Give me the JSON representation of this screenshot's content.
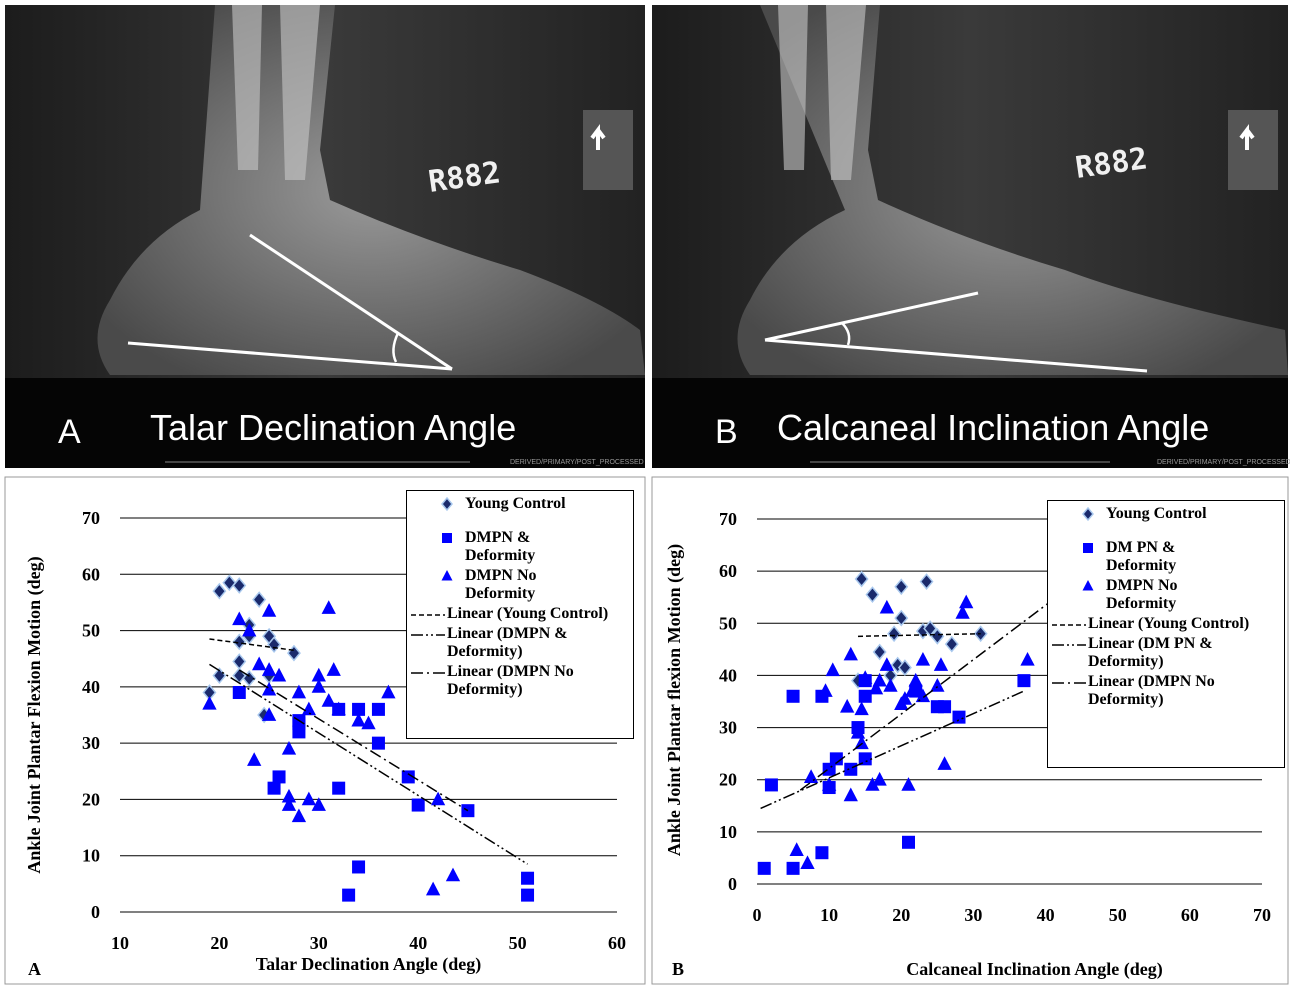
{
  "images": [
    {
      "letter": "A",
      "caption": "Talar Declination Angle",
      "tag": "R882",
      "footer": "DERIVED/PRIMARY/POST_PROCESSED"
    },
    {
      "letter": "B",
      "caption": "Calcaneal Inclination Angle",
      "tag": "R882",
      "footer": "DERIVED/PRIMARY/POST_PROCESSED"
    }
  ],
  "chart_data": [
    {
      "type": "scatter",
      "panel_label": "A",
      "x_label": "Talar Declination Angle (deg)",
      "y_label": "Ankle Joint Plantar Flexion Motion (deg)",
      "xlim": [
        10,
        60
      ],
      "ylim": [
        0,
        70
      ],
      "xticks": [
        10,
        20,
        30,
        40,
        50,
        60
      ],
      "yticks": [
        0,
        10,
        20,
        30,
        40,
        50,
        60,
        70
      ],
      "grid": "y",
      "series": [
        {
          "name": "Young Control",
          "marker": "diamond",
          "color": "#1a2a6c",
          "x": [
            19,
            20,
            20,
            21,
            22,
            22,
            22,
            22,
            23,
            23,
            24,
            24.5,
            25,
            25.5,
            25,
            27.5,
            23
          ],
          "values": [
            39,
            57,
            42,
            58.5,
            58,
            48,
            44.5,
            42,
            51,
            49,
            55.5,
            35,
            49,
            47.5,
            42,
            46,
            41.5
          ]
        },
        {
          "name": "DMPN & Deformity",
          "marker": "square",
          "color": "#0000ff",
          "x": [
            22,
            25.5,
            26,
            28,
            28,
            28,
            32,
            32,
            33,
            34,
            34,
            36,
            36,
            39,
            40,
            45,
            51,
            51
          ],
          "values": [
            39,
            22,
            24,
            32,
            33.5,
            34,
            36,
            22,
            3,
            8,
            36,
            36,
            30,
            24,
            19,
            18,
            6,
            3
          ]
        },
        {
          "name": "DMPN No Deformity",
          "marker": "triangle",
          "color": "#0000ff",
          "x": [
            19,
            22,
            23,
            24,
            25,
            25,
            25,
            25,
            23.5,
            26,
            27,
            27,
            27,
            28,
            28,
            29,
            29,
            30,
            30,
            30,
            31,
            31,
            31.5,
            32,
            34,
            35,
            37,
            42,
            41.5,
            43.5
          ],
          "values": [
            37,
            52,
            50,
            44,
            53.5,
            43,
            39.5,
            35,
            27,
            42,
            29,
            20.5,
            19,
            17,
            39,
            36,
            20,
            40,
            42,
            19,
            54,
            37.5,
            43,
            36,
            34,
            33.5,
            39,
            20,
            4,
            6.5
          ]
        },
        {
          "name": "Linear (Young Control)",
          "line": "dashed",
          "color": "#000000",
          "x": [
            19,
            27.5
          ],
          "values": [
            48.5,
            46.5
          ]
        },
        {
          "name": "Linear (DMPN & Deformity)",
          "line": "dash-dot-dot",
          "color": "#000000",
          "x": [
            19,
            51
          ],
          "values": [
            44,
            8.5
          ]
        },
        {
          "name": "Linear (DMPN No Deformity)",
          "line": "dash-dot",
          "color": "#000000",
          "x": [
            22,
            45
          ],
          "values": [
            43,
            18
          ]
        }
      ]
    },
    {
      "type": "scatter",
      "panel_label": "B",
      "x_label": "Calcaneal Inclination Angle (deg)",
      "y_label": "Ankle Joint Plantar flexion Motion (deg)",
      "xlim": [
        0,
        70
      ],
      "ylim": [
        0,
        70
      ],
      "xticks": [
        0,
        10,
        20,
        30,
        40,
        50,
        60,
        70
      ],
      "yticks": [
        0,
        10,
        20,
        30,
        40,
        50,
        60,
        70
      ],
      "grid": "y",
      "series": [
        {
          "name": "Young Control",
          "marker": "diamond",
          "color": "#1a2a6c",
          "x": [
            14.5,
            16,
            20,
            23.5,
            20,
            19,
            17,
            14,
            19.5,
            20.5,
            23,
            24,
            25,
            27,
            31,
            18.5
          ],
          "values": [
            58.5,
            55.5,
            57,
            58,
            51,
            48,
            44.5,
            39,
            42,
            41.5,
            48.5,
            49,
            47.5,
            46,
            48,
            40
          ]
        },
        {
          "name": "DM PN & Deformity",
          "marker": "square",
          "color": "#0000ff",
          "x": [
            1,
            2,
            5,
            5,
            9,
            9,
            10,
            10,
            11,
            13,
            14,
            15,
            15,
            15,
            21,
            22,
            25,
            26,
            28,
            37
          ],
          "values": [
            3,
            19,
            36,
            3,
            36,
            6,
            18.5,
            22,
            24,
            22,
            30,
            36,
            24,
            39,
            8,
            37,
            34,
            34,
            32,
            39
          ]
        },
        {
          "name": "DMPN No Deformity",
          "marker": "triangle",
          "color": "#0000ff",
          "x": [
            5.5,
            7,
            7.5,
            9.5,
            10,
            10.5,
            12.5,
            13,
            13,
            14,
            14.5,
            14.5,
            15,
            16,
            16.5,
            17,
            17,
            18,
            18,
            18.5,
            20,
            20.5,
            21,
            21.5,
            22,
            23,
            23,
            25,
            25.5,
            26,
            28.5,
            29,
            37.5
          ],
          "values": [
            6.5,
            4,
            20.5,
            37,
            19,
            41,
            34,
            44,
            17,
            29,
            27,
            33.5,
            39.5,
            19,
            37.5,
            39,
            20,
            53,
            42,
            38,
            34.5,
            35.5,
            19,
            37,
            39,
            43,
            36,
            38,
            42,
            23,
            52,
            54,
            43
          ]
        },
        {
          "name": "Linear (Young Control)",
          "line": "dashed",
          "color": "#000000",
          "x": [
            14,
            31
          ],
          "values": [
            47.5,
            48
          ]
        },
        {
          "name": "Linear (DM PN & Deformity)",
          "line": "dash-dot-dot",
          "color": "#000000",
          "x": [
            0.5,
            37
          ],
          "values": [
            14.5,
            37
          ]
        },
        {
          "name": "Linear (DMPN No Deformity)",
          "line": "dash-dot",
          "color": "#000000",
          "x": [
            6,
            41
          ],
          "values": [
            18,
            54.5
          ]
        }
      ]
    }
  ]
}
